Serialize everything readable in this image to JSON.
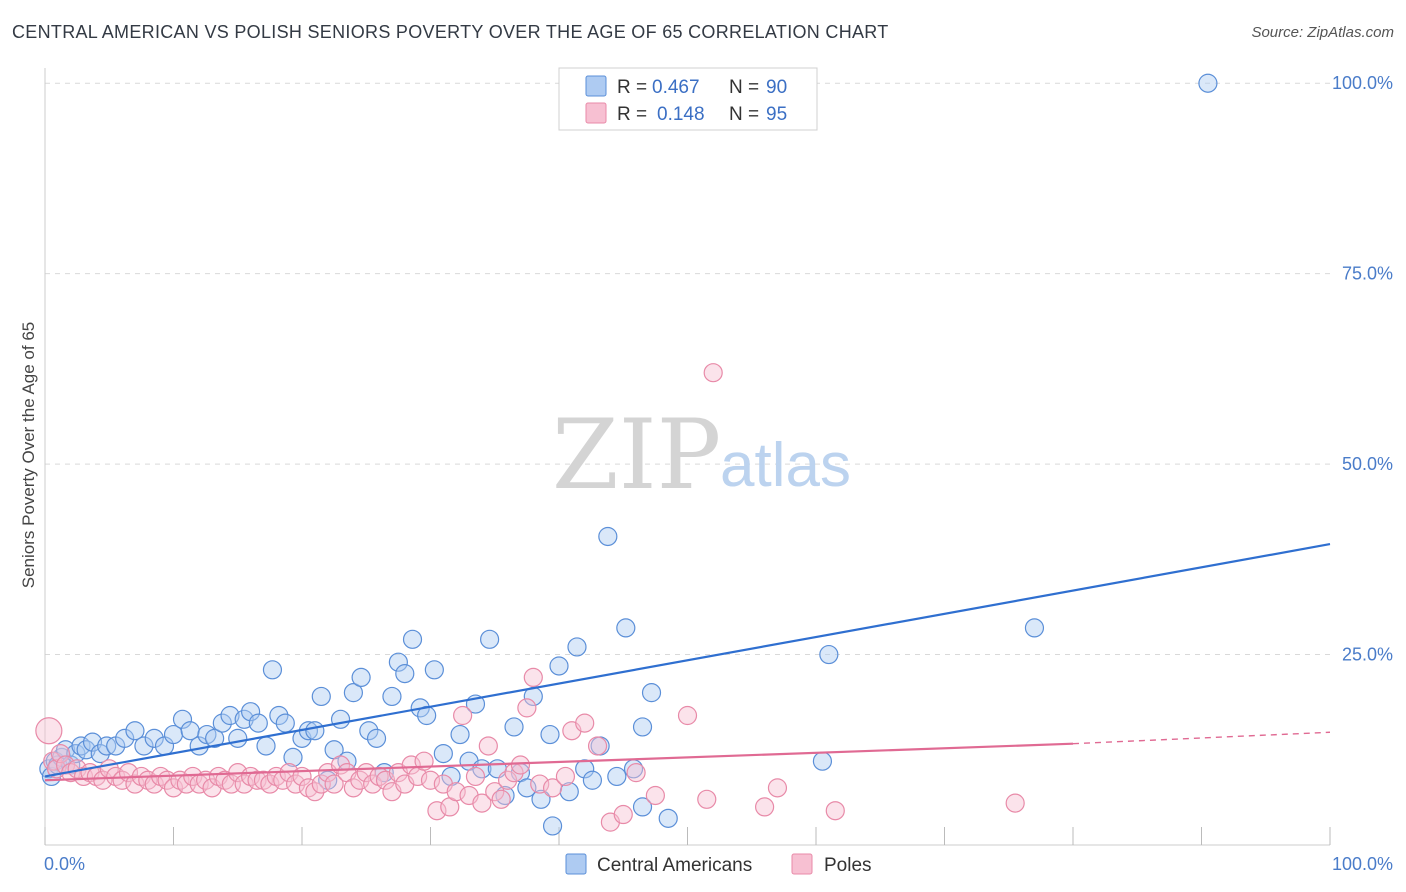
{
  "title": "CENTRAL AMERICAN VS POLISH SENIORS POVERTY OVER THE AGE OF 65 CORRELATION CHART",
  "source": "Source: ZipAtlas.com",
  "watermark": {
    "part1": "ZIP",
    "part2": "atlas"
  },
  "legend": {
    "rows": [
      {
        "r_label": "R =",
        "r_value": "0.467",
        "n_label": "N =",
        "n_value": "90",
        "color": "#aecbf2"
      },
      {
        "r_label": "R =",
        "r_value": "0.148",
        "n_label": "N =",
        "n_value": "95",
        "color": "#f7c0d2"
      }
    ]
  },
  "bottom_legend": [
    {
      "label": "Central Americans",
      "color": "#aecbf2"
    },
    {
      "label": "Poles",
      "color": "#f7c0d2"
    }
  ],
  "chart_data": {
    "type": "scatter",
    "ylabel": "Seniors Poverty Over the Age of 65",
    "xlim": [
      0,
      100
    ],
    "ylim": [
      0,
      102
    ],
    "x_tick_labels": [
      "0.0%",
      "100.0%"
    ],
    "y_tick_labels": [
      "25.0%",
      "50.0%",
      "75.0%",
      "100.0%"
    ],
    "y_ticks": [
      25,
      50,
      75,
      100
    ],
    "grid": true,
    "series": [
      {
        "name": "Central Americans",
        "color": "#5b8fd8",
        "fill": "#aecbf2",
        "trend": {
          "x": [
            0,
            100
          ],
          "y": [
            9.0,
            39.5
          ],
          "color": "#2f6fd0"
        },
        "points": [
          [
            0.3,
            10.0
          ],
          [
            0.5,
            9.0
          ],
          [
            0.8,
            11.0
          ],
          [
            1.0,
            10.5
          ],
          [
            1.3,
            11.5
          ],
          [
            1.6,
            12.5
          ],
          [
            2.0,
            10.5
          ],
          [
            2.4,
            12.0
          ],
          [
            2.8,
            13.0
          ],
          [
            3.2,
            12.5
          ],
          [
            3.7,
            13.5
          ],
          [
            4.3,
            12.0
          ],
          [
            4.8,
            13.0
          ],
          [
            5.5,
            13.0
          ],
          [
            6.2,
            14.0
          ],
          [
            7.0,
            15.0
          ],
          [
            7.7,
            13.0
          ],
          [
            8.5,
            14.0
          ],
          [
            9.3,
            13.0
          ],
          [
            10.0,
            14.5
          ],
          [
            10.7,
            16.5
          ],
          [
            11.3,
            15.0
          ],
          [
            12.0,
            13.0
          ],
          [
            12.6,
            14.5
          ],
          [
            13.2,
            14.0
          ],
          [
            13.8,
            16.0
          ],
          [
            14.4,
            17.0
          ],
          [
            15.0,
            14.0
          ],
          [
            15.5,
            16.5
          ],
          [
            16.0,
            17.5
          ],
          [
            16.6,
            16.0
          ],
          [
            17.2,
            13.0
          ],
          [
            17.7,
            23.0
          ],
          [
            18.2,
            17.0
          ],
          [
            18.7,
            16.0
          ],
          [
            19.3,
            11.5
          ],
          [
            20.0,
            14.0
          ],
          [
            20.5,
            15.0
          ],
          [
            21.0,
            15.0
          ],
          [
            21.5,
            19.5
          ],
          [
            22.0,
            8.5
          ],
          [
            22.5,
            12.5
          ],
          [
            23.0,
            16.5
          ],
          [
            23.5,
            11.0
          ],
          [
            24.0,
            20.0
          ],
          [
            24.6,
            22.0
          ],
          [
            25.2,
            15.0
          ],
          [
            25.8,
            14.0
          ],
          [
            26.4,
            9.5
          ],
          [
            27.0,
            19.5
          ],
          [
            27.5,
            24.0
          ],
          [
            28.0,
            22.5
          ],
          [
            28.6,
            27.0
          ],
          [
            29.2,
            18.0
          ],
          [
            29.7,
            17.0
          ],
          [
            30.3,
            23.0
          ],
          [
            31.0,
            12.0
          ],
          [
            31.6,
            9.0
          ],
          [
            32.3,
            14.5
          ],
          [
            33.0,
            11.0
          ],
          [
            33.5,
            18.5
          ],
          [
            34.0,
            10.0
          ],
          [
            34.6,
            27.0
          ],
          [
            35.2,
            10.0
          ],
          [
            35.8,
            6.5
          ],
          [
            36.5,
            15.5
          ],
          [
            37.0,
            9.5
          ],
          [
            37.5,
            7.5
          ],
          [
            38.0,
            19.5
          ],
          [
            38.6,
            6.0
          ],
          [
            39.3,
            14.5
          ],
          [
            40.0,
            23.5
          ],
          [
            40.8,
            7.0
          ],
          [
            41.4,
            26.0
          ],
          [
            42.0,
            10.0
          ],
          [
            42.6,
            8.5
          ],
          [
            43.2,
            13.0
          ],
          [
            43.8,
            40.5
          ],
          [
            44.5,
            9.0
          ],
          [
            45.2,
            28.5
          ],
          [
            45.8,
            10.0
          ],
          [
            46.5,
            15.5
          ],
          [
            47.2,
            20.0
          ],
          [
            39.5,
            2.5
          ],
          [
            46.5,
            5.0
          ],
          [
            48.5,
            3.5
          ],
          [
            60.5,
            11.0
          ],
          [
            61.0,
            25.0
          ],
          [
            77.0,
            28.5
          ],
          [
            90.5,
            100.0
          ]
        ]
      },
      {
        "name": "Poles",
        "color": "#e88aa8",
        "fill": "#f7c0d2",
        "trend": {
          "x": [
            0,
            80
          ],
          "y": [
            8.5,
            13.3
          ],
          "dash_to": [
            100,
            14.8
          ],
          "color": "#e06a93"
        },
        "points": [
          [
            0.3,
            15.0
          ],
          [
            0.6,
            11.0
          ],
          [
            0.9,
            10.0
          ],
          [
            1.2,
            12.0
          ],
          [
            1.6,
            10.5
          ],
          [
            2.0,
            9.5
          ],
          [
            2.5,
            10.0
          ],
          [
            3.0,
            9.0
          ],
          [
            3.5,
            9.5
          ],
          [
            4.0,
            9.0
          ],
          [
            4.5,
            8.5
          ],
          [
            5.0,
            10.0
          ],
          [
            5.5,
            9.0
          ],
          [
            6.0,
            8.5
          ],
          [
            6.5,
            9.5
          ],
          [
            7.0,
            8.0
          ],
          [
            7.5,
            9.0
          ],
          [
            8.0,
            8.5
          ],
          [
            8.5,
            8.0
          ],
          [
            9.0,
            9.0
          ],
          [
            9.5,
            8.5
          ],
          [
            10.0,
            7.5
          ],
          [
            10.5,
            8.5
          ],
          [
            11.0,
            8.0
          ],
          [
            11.5,
            9.0
          ],
          [
            12.0,
            8.0
          ],
          [
            12.5,
            8.5
          ],
          [
            13.0,
            7.5
          ],
          [
            13.5,
            9.0
          ],
          [
            14.0,
            8.5
          ],
          [
            14.5,
            8.0
          ],
          [
            15.0,
            9.5
          ],
          [
            15.5,
            8.0
          ],
          [
            16.0,
            9.0
          ],
          [
            16.5,
            8.5
          ],
          [
            17.0,
            8.5
          ],
          [
            17.5,
            8.0
          ],
          [
            18.0,
            9.0
          ],
          [
            18.5,
            8.5
          ],
          [
            19.0,
            9.5
          ],
          [
            19.5,
            8.0
          ],
          [
            20.0,
            9.0
          ],
          [
            20.5,
            7.5
          ],
          [
            21.0,
            7.0
          ],
          [
            21.5,
            8.0
          ],
          [
            22.0,
            9.5
          ],
          [
            22.5,
            8.0
          ],
          [
            23.0,
            10.5
          ],
          [
            23.5,
            9.5
          ],
          [
            24.0,
            7.5
          ],
          [
            24.5,
            8.5
          ],
          [
            25.0,
            9.5
          ],
          [
            25.5,
            8.0
          ],
          [
            26.0,
            9.0
          ],
          [
            26.5,
            8.5
          ],
          [
            27.0,
            7.0
          ],
          [
            27.5,
            9.5
          ],
          [
            28.0,
            8.0
          ],
          [
            28.5,
            10.5
          ],
          [
            29.0,
            9.0
          ],
          [
            29.5,
            11.0
          ],
          [
            30.0,
            8.5
          ],
          [
            30.5,
            4.5
          ],
          [
            31.0,
            8.0
          ],
          [
            31.5,
            5.0
          ],
          [
            32.0,
            7.0
          ],
          [
            32.5,
            17.0
          ],
          [
            33.0,
            6.5
          ],
          [
            33.5,
            9.0
          ],
          [
            34.0,
            5.5
          ],
          [
            34.5,
            13.0
          ],
          [
            35.0,
            7.0
          ],
          [
            35.5,
            6.0
          ],
          [
            36.0,
            8.5
          ],
          [
            36.5,
            9.5
          ],
          [
            37.0,
            10.5
          ],
          [
            37.5,
            18.0
          ],
          [
            38.0,
            22.0
          ],
          [
            38.5,
            8.0
          ],
          [
            39.5,
            7.5
          ],
          [
            40.5,
            9.0
          ],
          [
            41.0,
            15.0
          ],
          [
            42.0,
            16.0
          ],
          [
            43.0,
            13.0
          ],
          [
            44.0,
            3.0
          ],
          [
            45.0,
            4.0
          ],
          [
            46.0,
            9.5
          ],
          [
            47.5,
            6.5
          ],
          [
            50.0,
            17.0
          ],
          [
            51.5,
            6.0
          ],
          [
            52.0,
            62.0
          ],
          [
            56.0,
            5.0
          ],
          [
            57.0,
            7.5
          ],
          [
            61.5,
            4.5
          ],
          [
            75.5,
            5.5
          ]
        ]
      }
    ]
  }
}
